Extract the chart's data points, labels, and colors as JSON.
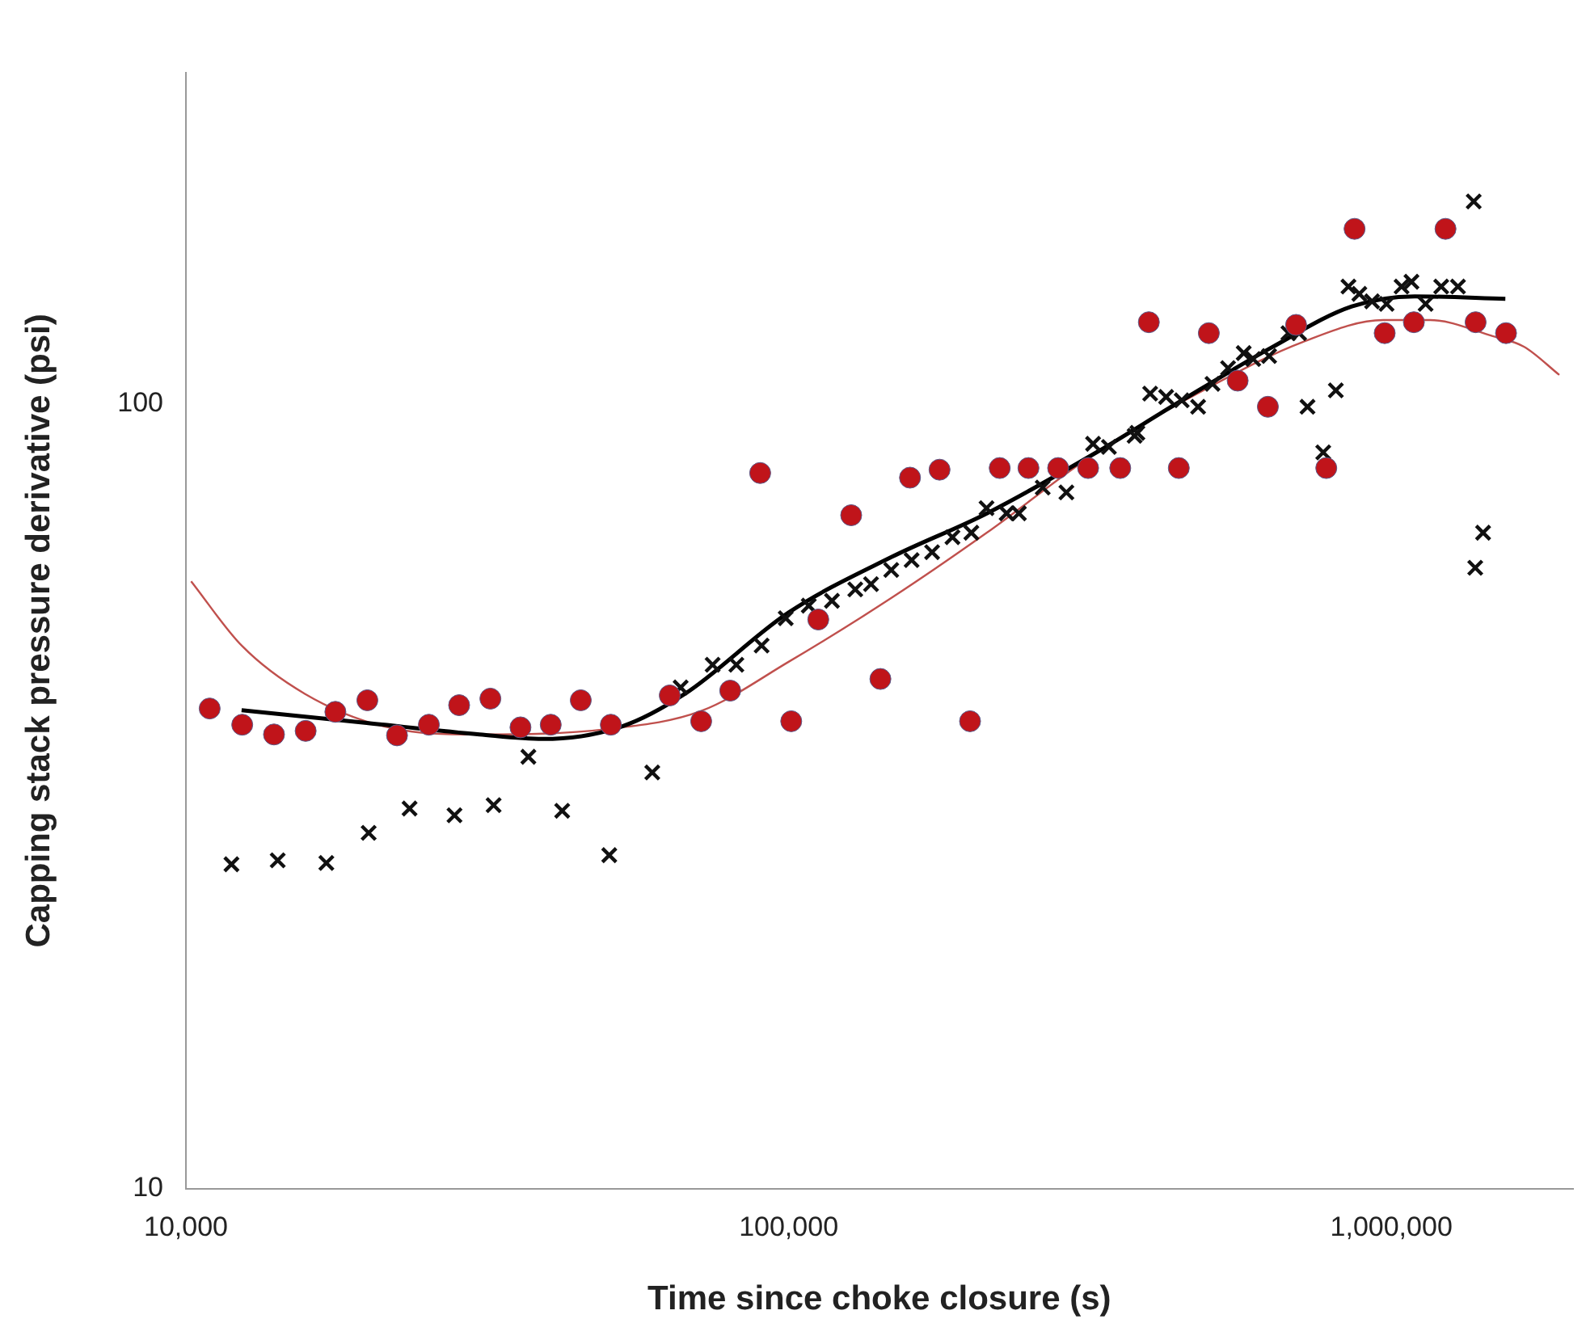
{
  "chart_data": {
    "type": "scatter",
    "xlabel": "Time since choke closure (s)",
    "ylabel": "Capping stack pressure derivative (psi)",
    "log": "xy",
    "grid": false,
    "legend": false,
    "xlim": [
      10000,
      2000000
    ],
    "xticks": [
      {
        "value": 10000,
        "label": "10,000"
      },
      {
        "value": 100000,
        "label": "100,000"
      },
      {
        "value": 1000000,
        "label": "1,000,000"
      }
    ],
    "ylim": [
      10,
      264
    ],
    "yticks": [
      10,
      100
    ],
    "series": [
      {
        "marker": "circle",
        "color": "#c0141a",
        "x": [
          10950,
          12400,
          14000,
          15800,
          17700,
          20000,
          22400,
          25300,
          28400,
          32000,
          35900,
          40300,
          45200,
          50700,
          63500,
          71600,
          80000,
          89700,
          101000,
          112000,
          127000,
          142000,
          159000,
          178000,
          200000,
          224000,
          250000,
          280000,
          314000,
          355000,
          396000,
          444000,
          498000,
          556000,
          624000,
          695000,
          780000,
          869000,
          975000,
          1090000,
          1230000,
          1380000,
          1550000
        ],
        "values": [
          40.9,
          39.0,
          37.9,
          38.3,
          40.5,
          41.9,
          37.8,
          39.0,
          41.3,
          42.1,
          38.7,
          39.0,
          41.9,
          39.0,
          42.5,
          39.4,
          43.1,
          81.6,
          39.4,
          53.1,
          72.1,
          44.6,
          80.5,
          82.4,
          39.4,
          82.8,
          82.8,
          82.8,
          82.8,
          82.8,
          127,
          82.8,
          123,
          107,
          99.1,
          126,
          82.8,
          167,
          123,
          127,
          167,
          127,
          123
        ]
      },
      {
        "marker": "cross",
        "color": "#111111",
        "x": [
          11900,
          14200,
          17100,
          20100,
          23500,
          27900,
          32400,
          37000,
          42100,
          50400,
          59400,
          66200,
          74800,
          81900,
          90200,
          98900,
          108000,
          118000,
          129000,
          137000,
          148000,
          160000,
          173000,
          187000,
          201000,
          213000,
          230000,
          241000,
          264000,
          289000,
          320000,
          340000,
          375000,
          379000,
          398000,
          423000,
          449000,
          478000,
          505000,
          536000,
          569000,
          590000,
          627000,
          675000,
          703000,
          726000,
          771000,
          809000,
          849000,
          885000,
          929000,
          982000,
          1040000,
          1080000,
          1140000,
          1210000,
          1290000,
          1370000,
          1420000,
          1378000
        ],
        "values": [
          25.9,
          26.2,
          26.0,
          28.4,
          30.5,
          29.9,
          30.8,
          35.5,
          30.3,
          26.6,
          33.9,
          43.5,
          46.5,
          46.5,
          49.2,
          53.3,
          55.3,
          56.1,
          58.0,
          58.9,
          61.4,
          63.2,
          64.7,
          67.6,
          68.5,
          73.6,
          72.5,
          72.5,
          78.2,
          77.1,
          88.9,
          88.1,
          91.0,
          91.8,
          103,
          102,
          101,
          99.1,
          106,
          111,
          116,
          114,
          115,
          123,
          123,
          99.1,
          86.7,
          104,
          141,
          138,
          135,
          134,
          141,
          143,
          134,
          141,
          141,
          181,
          68.5,
          61.8
        ]
      },
      {
        "type": "line",
        "marker": "none",
        "line_style": "solid",
        "color": "#000000",
        "x": [
          12370,
          19950,
          30700,
          39100,
          52900,
          67300,
          100000,
          148300,
          213300,
          325000,
          440000,
          634000,
          860000,
          1094000,
          1546000
        ],
        "values": [
          40.7,
          39.2,
          37.9,
          37.4,
          38.8,
          42.7,
          54.2,
          63.8,
          72.5,
          86.8,
          100,
          118,
          133,
          137,
          136
        ]
      },
      {
        "type": "line",
        "marker": "none",
        "line_style": "solid",
        "color": "#c0504d",
        "x": [
          10200,
          12370,
          15750,
          21330,
          30700,
          49900,
          71600,
          100000,
          148300,
          213300,
          325000,
          497800,
          712000,
          970000,
          1160000,
          1473000,
          1660000,
          1900000
        ],
        "values": [
          59.4,
          49.2,
          42.7,
          38.8,
          37.9,
          38.5,
          40.6,
          46.9,
          56.6,
          68.5,
          86.8,
          104.9,
          119.8,
          127.8,
          127.8,
          121.9,
          118.2,
          108.8
        ]
      }
    ]
  }
}
